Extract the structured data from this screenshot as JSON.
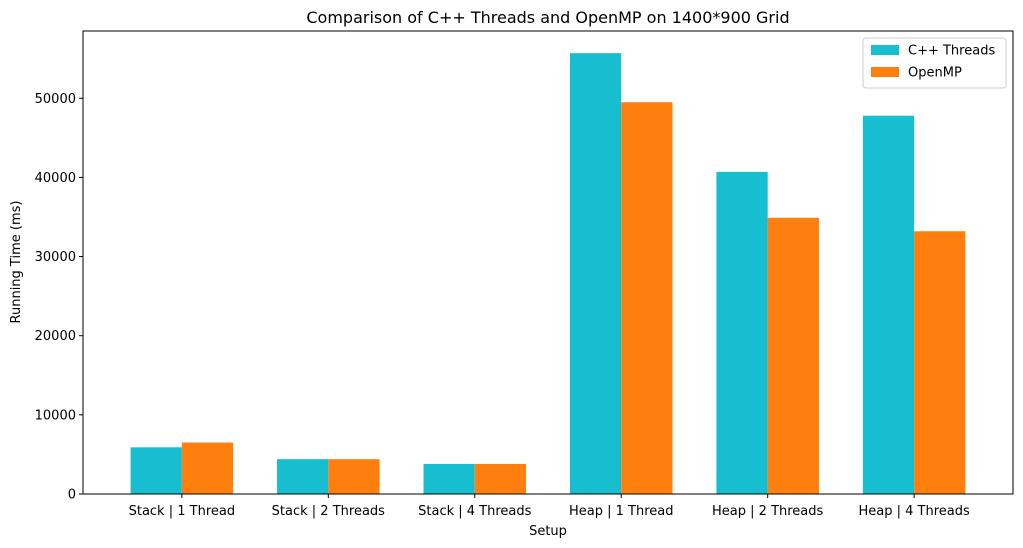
{
  "chart_data": {
    "type": "bar",
    "title": "Comparison of C++ Threads and OpenMP on 1400*900 Grid",
    "xlabel": "Setup",
    "ylabel": "Running Time (ms)",
    "ylim": [
      0,
      58500
    ],
    "yticks": [
      0,
      10000,
      20000,
      30000,
      40000,
      50000
    ],
    "grid": false,
    "legend_position": "top-right",
    "categories": [
      "Stack | 1 Thread",
      "Stack | 2 Threads",
      "Stack | 4 Threads",
      "Heap | 1 Thread",
      "Heap | 2 Threads",
      "Heap | 4 Threads"
    ],
    "series": [
      {
        "name": "C++ Threads",
        "color": "#17becf",
        "values": [
          5900,
          4400,
          3800,
          55700,
          40700,
          47800
        ]
      },
      {
        "name": "OpenMP",
        "color": "#ff7f0e",
        "values": [
          6500,
          4400,
          3800,
          49500,
          34900,
          33200
        ]
      }
    ]
  }
}
